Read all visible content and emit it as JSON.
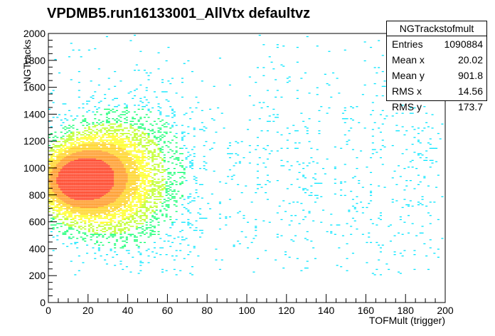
{
  "chart_data": {
    "type": "heatmap",
    "title": "VPDMB5.run16133001_AllVtx defaultvz",
    "xlabel": "TOFMult (trigger)",
    "ylabel": "NGTracks",
    "xlim": [
      0,
      200
    ],
    "ylim": [
      0,
      2000
    ],
    "x_ticks": [
      "0",
      "20",
      "40",
      "60",
      "80",
      "100",
      "120",
      "140",
      "160",
      "180",
      "200"
    ],
    "y_ticks": [
      "0",
      "200",
      "400",
      "600",
      "800",
      "1000",
      "1200",
      "1400",
      "1600",
      "1800",
      "2000"
    ],
    "density_peak": {
      "x": 15,
      "y": 900
    },
    "colors": [
      "#00e5ff",
      "#00ff66",
      "#b3ff00",
      "#ffff00",
      "#ffcc00",
      "#ff8800",
      "#ff2200"
    ],
    "stats": {
      "name": "NGTrackstofmult",
      "rows": [
        {
          "label": "Entries",
          "value": "1090884"
        },
        {
          "label": "Mean x",
          "value": "20.02"
        },
        {
          "label": "Mean y",
          "value": "901.8"
        },
        {
          "label": "RMS x",
          "value": "14.56"
        },
        {
          "label": "RMS y",
          "value": "173.7"
        }
      ]
    }
  }
}
